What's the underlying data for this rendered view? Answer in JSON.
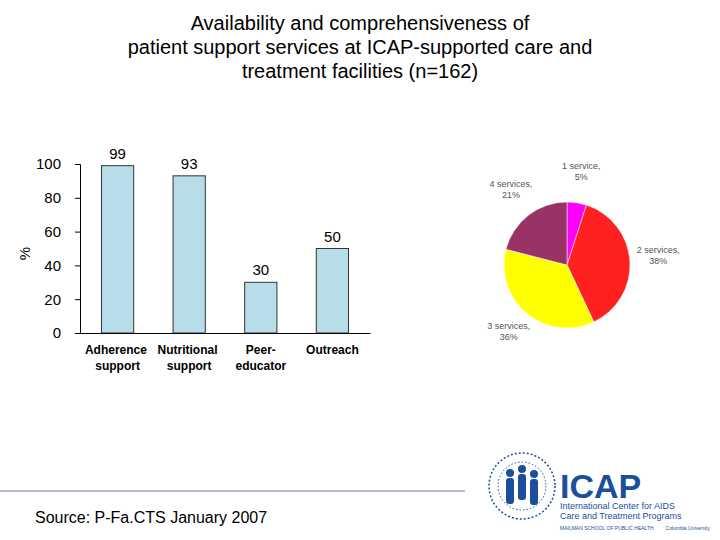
{
  "title": [
    "Availability and comprehensiveness of",
    "patient support services at ICAP-supported care and",
    "treatment facilities (n=162)"
  ],
  "source": "Source: P-Fa.CTS January 2007",
  "logo": [
    "ICAP",
    "International Center for AIDS",
    "Care and Treatment Programs",
    "MAILMAN SCHOOL OF PUBLIC HEALTH",
    "Columbia University"
  ],
  "chart_data": [
    {
      "type": "bar",
      "categories": [
        "Adherence support",
        "Nutritional support",
        "Peer-educator",
        "Outreach"
      ],
      "values": [
        99,
        93,
        30,
        50
      ],
      "color": "#b7dde8",
      "y_label": "%",
      "ylim": [
        0,
        100
      ],
      "yticks": [
        0,
        20,
        40,
        60,
        80,
        100
      ],
      "grid": false,
      "data_labels": true
    },
    {
      "type": "pie",
      "categories": [
        "1 service,",
        "2 services,",
        "3 services,",
        "4 services,"
      ],
      "values": [
        5,
        38,
        36,
        21
      ],
      "value_labels": [
        "5%",
        "38%",
        "36%",
        "21%"
      ],
      "colors": [
        "#ff00ff",
        "#ff2020",
        "#ffff00",
        "#993366"
      ],
      "data_labels": true
    }
  ]
}
